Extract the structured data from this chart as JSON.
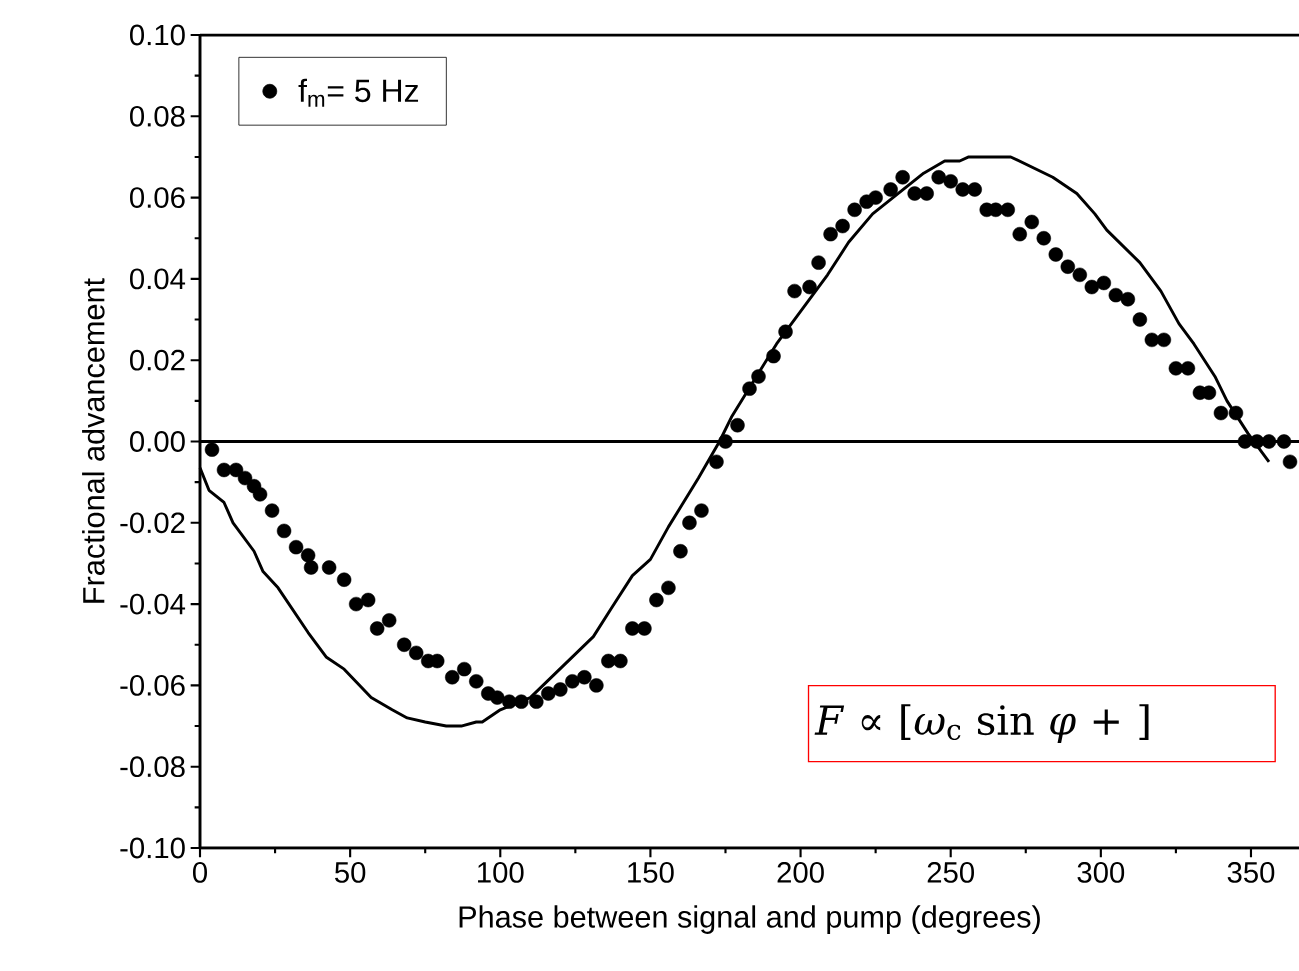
{
  "chart_data": {
    "type": "scatter",
    "xlabel": "Phase between signal and pump (degrees)",
    "ylabel": "Fractional advancement",
    "xlim": [
      0,
      366
    ],
    "ylim": [
      -0.1,
      0.1
    ],
    "xticks": [
      0,
      50,
      100,
      150,
      200,
      250,
      300,
      350
    ],
    "yticks": [
      {
        "value": -0.1,
        "label": "-0.10"
      },
      {
        "value": -0.08,
        "label": "-0.08"
      },
      {
        "value": -0.06,
        "label": "-0.06"
      },
      {
        "value": -0.04,
        "label": "-0.04"
      },
      {
        "value": -0.02,
        "label": "-0.02"
      },
      {
        "value": 0,
        "label": "0.00"
      },
      {
        "value": 0.02,
        "label": "0.02"
      },
      {
        "value": 0.04,
        "label": "0.04"
      },
      {
        "value": 0.06,
        "label": "0.06"
      },
      {
        "value": 0.08,
        "label": "0.08"
      },
      {
        "value": 0.1,
        "label": "0.10"
      }
    ],
    "grid": false,
    "legend": "top left",
    "ref_lines": [
      {
        "axis": "y",
        "value": 0,
        "color": "#000000"
      }
    ],
    "annotations": [
      "*F* ∝ [*ω*$_{c}$ sin *φ* +        ]"
    ],
    "series": [
      {
        "name": "f$_{m}$=    5 Hz",
        "marker": "circle",
        "color": "#000000",
        "x": [
          4,
          8,
          12,
          15,
          18,
          20,
          24,
          28,
          32,
          36,
          37,
          43,
          48,
          52,
          56,
          59,
          63,
          68,
          72,
          76,
          79,
          84,
          88,
          92,
          96,
          99,
          103,
          107,
          112,
          116,
          120,
          124,
          128,
          132,
          136,
          140,
          144,
          148,
          152,
          156,
          160,
          163,
          167,
          172,
          175,
          179,
          183,
          186,
          191,
          195,
          198,
          203,
          206,
          210,
          214,
          218,
          222,
          225,
          230,
          234,
          238,
          242,
          246,
          250,
          254,
          258,
          262,
          265,
          269,
          273,
          277,
          281,
          285,
          289,
          293,
          297,
          301,
          305,
          309,
          313,
          317,
          321,
          325,
          329,
          333,
          336,
          340,
          345,
          348,
          352,
          356,
          361,
          363
        ],
        "values": [
          -0.002,
          -0.007,
          -0.007,
          -0.009,
          -0.011,
          -0.013,
          -0.017,
          -0.022,
          -0.026,
          -0.028,
          -0.031,
          -0.031,
          -0.034,
          -0.04,
          -0.039,
          -0.046,
          -0.044,
          -0.05,
          -0.052,
          -0.054,
          -0.054,
          -0.058,
          -0.056,
          -0.059,
          -0.062,
          -0.063,
          -0.064,
          -0.064,
          -0.064,
          -0.062,
          -0.061,
          -0.059,
          -0.058,
          -0.06,
          -0.054,
          -0.054,
          -0.046,
          -0.046,
          -0.039,
          -0.036,
          -0.027,
          -0.02,
          -0.017,
          -0.005,
          0.0,
          0.004,
          0.013,
          0.016,
          0.021,
          0.027,
          0.037,
          0.038,
          0.044,
          0.051,
          0.053,
          0.057,
          0.059,
          0.06,
          0.062,
          0.065,
          0.061,
          0.061,
          0.065,
          0.064,
          0.062,
          0.062,
          0.057,
          0.057,
          0.057,
          0.051,
          0.054,
          0.05,
          0.046,
          0.043,
          0.041,
          0.038,
          0.039,
          0.036,
          0.035,
          0.03,
          0.025,
          0.025,
          0.018,
          0.018,
          0.012,
          0.012,
          0.007,
          0.007,
          0.0,
          0.0,
          0.0,
          0.0,
          -0.005
        ]
      },
      {
        "type": "line",
        "color": "#000000",
        "line_style": "solid",
        "marker": "none",
        "x": [
          0,
          3,
          8,
          11,
          18,
          21,
          26,
          36,
          42,
          48,
          57,
          64,
          69,
          75,
          82,
          87,
          92,
          94,
          100,
          110,
          131,
          137,
          144,
          150,
          156,
          166,
          173,
          177,
          192,
          209,
          216,
          224,
          241,
          248,
          253,
          256,
          270,
          284,
          292,
          298,
          302,
          313,
          320,
          326,
          331,
          338,
          342,
          349,
          356
        ],
        "values": [
          -0.0065,
          -0.012,
          -0.015,
          -0.02,
          -0.027,
          -0.032,
          -0.036,
          -0.047,
          -0.053,
          -0.056,
          -0.063,
          -0.066,
          -0.068,
          -0.069,
          -0.07,
          -0.07,
          -0.069,
          -0.069,
          -0.066,
          -0.063,
          -0.048,
          -0.041,
          -0.033,
          -0.029,
          -0.021,
          -0.009,
          0.0,
          0.006,
          0.024,
          0.041,
          0.049,
          0.056,
          0.066,
          0.069,
          0.069,
          0.07,
          0.07,
          0.065,
          0.061,
          0.056,
          0.052,
          0.044,
          0.037,
          0.029,
          0.024,
          0.016,
          0.01,
          0.002,
          -0.005
        ]
      }
    ]
  }
}
